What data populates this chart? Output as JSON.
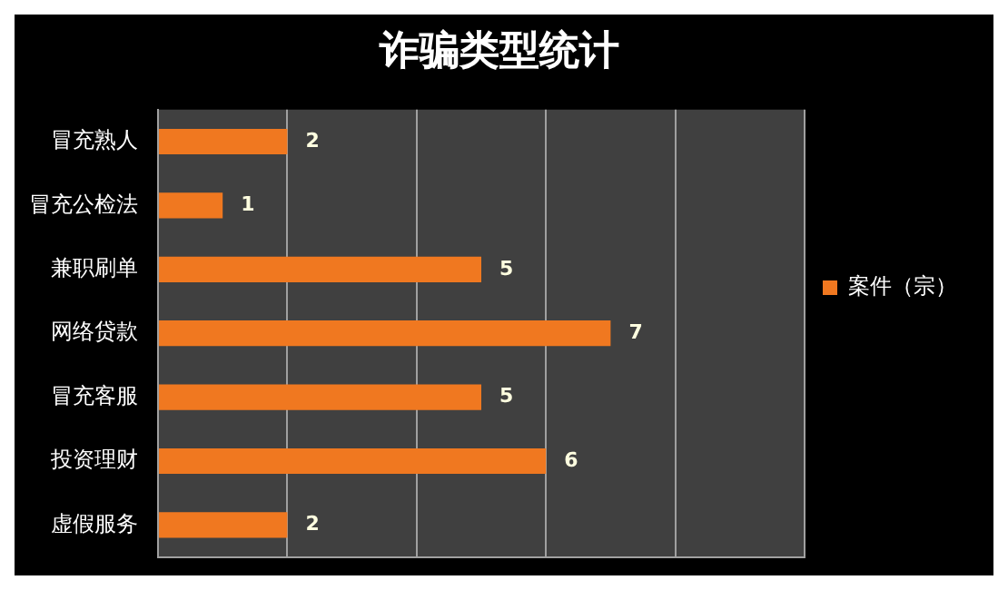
{
  "chart_data": {
    "type": "bar",
    "orientation": "horizontal",
    "title": "诈骗类型统计",
    "categories": [
      "冒充熟人",
      "冒充公检法",
      "兼职刷单",
      "网络贷款",
      "冒充客服",
      "投资理财",
      "虚假服务"
    ],
    "series": [
      {
        "name": "案件（宗）",
        "color": "#f07820",
        "values": [
          2,
          1,
          5,
          7,
          5,
          6,
          2
        ]
      }
    ],
    "xlim": [
      0,
      10
    ],
    "tick_labels": "y",
    "grid": "x",
    "legend": "right",
    "data_labels": true
  }
}
